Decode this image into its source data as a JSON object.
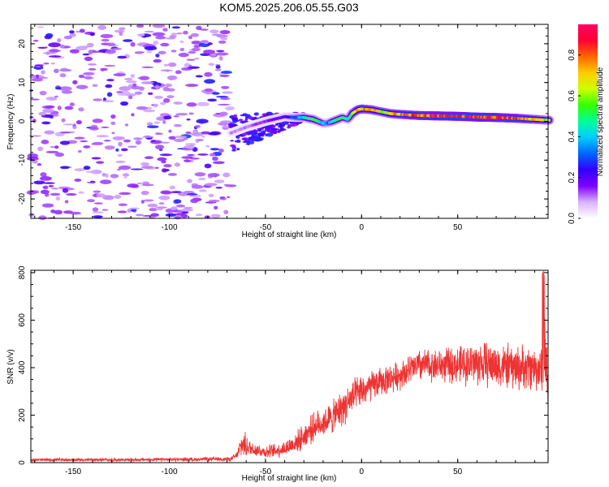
{
  "title": "KOM5.2025.206.05.55.G03",
  "chart_data": [
    {
      "type": "heatmap",
      "xlabel": "Height of straight line (km)",
      "ylabel": "Frequency (Hz)",
      "xlim": [
        -172,
        97
      ],
      "ylim": [
        -25,
        25
      ],
      "xticks": [
        -150,
        -100,
        -50,
        0,
        50
      ],
      "yticks": [
        -20,
        -10,
        0,
        10,
        20
      ],
      "colorbar": {
        "label": "Normalized spectral amplitude",
        "range": [
          0,
          0.95
        ],
        "ticks": [
          0.0,
          0.2,
          0.4,
          0.6,
          0.8
        ],
        "tick_labels": [
          "0.0",
          "0.2",
          "0.4",
          "0.6",
          "0.8"
        ],
        "colormap": [
          "#ffffff",
          "#d9b3ff",
          "#7f00ff",
          "#3300ff",
          "#0066ff",
          "#00ccff",
          "#00ff99",
          "#33ff00",
          "#ccff00",
          "#ffcc00",
          "#ff6600",
          "#ff0033",
          "#ff0066"
        ]
      },
      "noise_region_km": [
        -172,
        -68
      ],
      "signal_trace": {
        "x": [
          -68,
          -60,
          -50,
          -40,
          -35,
          -30,
          -25,
          -20,
          -18,
          -15,
          -10,
          -7,
          -5,
          -2,
          0,
          5,
          10,
          15,
          20,
          30,
          40,
          50,
          60,
          70,
          80,
          90,
          97
        ],
        "y": [
          -3.0,
          -1.5,
          0.0,
          1.2,
          1.0,
          1.0,
          0.5,
          -0.5,
          -0.5,
          0.0,
          1.0,
          0.5,
          2.0,
          3.0,
          3.2,
          3.0,
          2.5,
          2.0,
          1.8,
          1.5,
          1.4,
          1.3,
          1.1,
          1.0,
          0.8,
          0.5,
          0.3
        ],
        "amplitude": [
          0.1,
          0.1,
          0.15,
          0.2,
          0.3,
          0.45,
          0.55,
          0.4,
          0.3,
          0.5,
          0.5,
          0.4,
          0.6,
          0.7,
          0.75,
          0.7,
          0.65,
          0.7,
          0.75,
          0.8,
          0.85,
          0.85,
          0.85,
          0.85,
          0.8,
          0.7,
          0.6
        ]
      }
    },
    {
      "type": "line",
      "xlabel": "Height of straight line (km)",
      "ylabel": "SNR (v/v)",
      "xlim": [
        -172,
        97
      ],
      "ylim": [
        0,
        810
      ],
      "xticks": [
        -150,
        -100,
        -50,
        0,
        50
      ],
      "yticks": [
        0,
        200,
        400,
        600,
        800
      ],
      "color": "#ee3333",
      "envelope": {
        "x": [
          -172,
          -120,
          -68,
          -65,
          -62,
          -58,
          -55,
          -50,
          -45,
          -40,
          -35,
          -30,
          -25,
          -20,
          -15,
          -10,
          -5,
          0,
          10,
          20,
          30,
          40,
          50,
          60,
          70,
          80,
          90,
          94,
          95,
          97
        ],
        "mean": [
          12,
          12,
          15,
          30,
          80,
          60,
          55,
          45,
          50,
          60,
          80,
          110,
          150,
          170,
          190,
          230,
          270,
          300,
          340,
          370,
          410,
          410,
          410,
          420,
          410,
          400,
          400,
          390,
          500,
          330
        ],
        "spread": [
          8,
          8,
          10,
          15,
          70,
          40,
          35,
          30,
          35,
          40,
          50,
          60,
          70,
          70,
          80,
          90,
          90,
          80,
          70,
          70,
          80,
          80,
          90,
          110,
          110,
          110,
          110,
          110,
          300,
          100
        ]
      }
    }
  ]
}
